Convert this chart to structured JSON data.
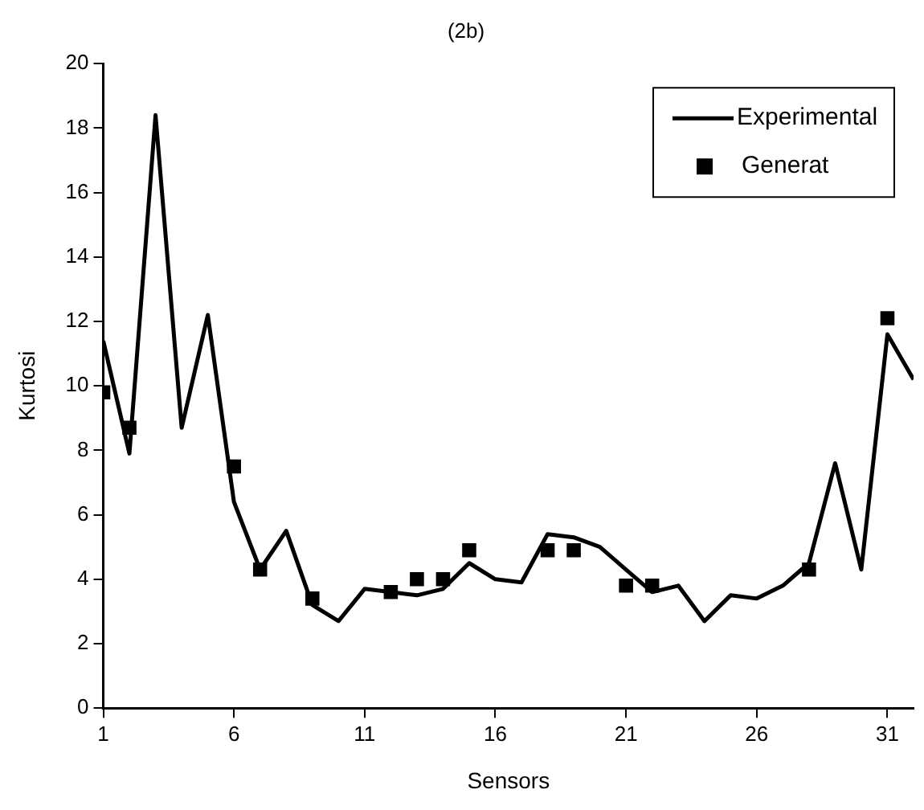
{
  "chart_data": {
    "type": "line",
    "title": "(2b)",
    "xlabel": "Sensors",
    "ylabel": "Kurtosi",
    "xlim": [
      1,
      32
    ],
    "xticks": [
      1,
      6,
      11,
      16,
      21,
      26,
      31
    ],
    "ylim": [
      0,
      20
    ],
    "yticks": [
      0,
      2,
      4,
      6,
      8,
      10,
      12,
      14,
      16,
      18,
      20
    ],
    "grid": false,
    "legend": "top right",
    "series": [
      {
        "name": "Experimental",
        "color": "#000000",
        "marker": "none",
        "line_style": "solid",
        "x": [
          1,
          2,
          3,
          4,
          5,
          6,
          7,
          8,
          9,
          10,
          11,
          12,
          13,
          14,
          15,
          16,
          17,
          18,
          19,
          20,
          21,
          22,
          23,
          24,
          25,
          26,
          27,
          28,
          29,
          30,
          31,
          32
        ],
        "values": [
          11.4,
          7.9,
          18.4,
          8.7,
          12.2,
          6.4,
          4.3,
          5.5,
          3.2,
          2.7,
          3.7,
          3.6,
          3.5,
          3.7,
          4.5,
          4.0,
          3.9,
          5.4,
          5.3,
          5.0,
          4.3,
          3.6,
          3.8,
          2.7,
          3.5,
          3.4,
          3.8,
          4.5,
          7.6,
          4.3,
          11.6,
          10.2
        ]
      },
      {
        "name": "Generat",
        "type": "scatter",
        "color": "#000000",
        "marker": "square",
        "x": [
          1,
          2,
          6,
          7,
          9,
          12,
          13,
          14,
          15,
          18,
          19,
          21,
          22,
          28,
          31
        ],
        "values": [
          9.8,
          8.7,
          7.5,
          4.3,
          3.4,
          3.6,
          4.0,
          4.0,
          4.9,
          4.9,
          4.9,
          3.8,
          3.8,
          4.3,
          12.1
        ]
      }
    ]
  }
}
